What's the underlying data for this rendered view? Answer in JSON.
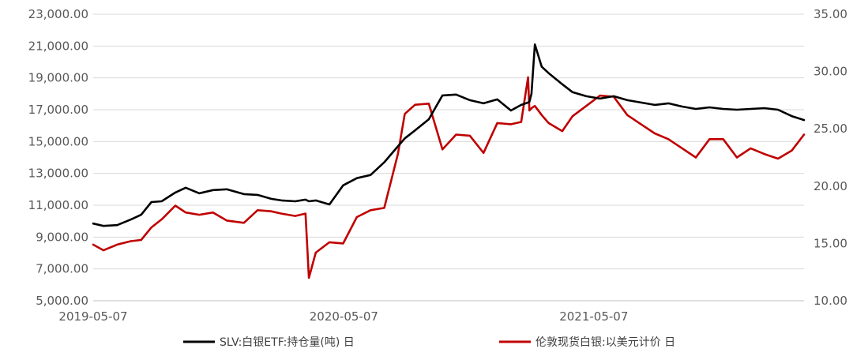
{
  "chart_data": {
    "type": "line",
    "title": "",
    "xlabel": "",
    "ylabel": "",
    "x_ticks": [
      "2019-05-07",
      "2020-05-07",
      "2021-05-07"
    ],
    "x_range": [
      "2019-05-07",
      "2022-03-10"
    ],
    "y_left": {
      "ticks": [
        "5,000.00",
        "7,000.00",
        "9,000.00",
        "11,000.00",
        "13,000.00",
        "15,000.00",
        "17,000.00",
        "19,000.00",
        "21,000.00",
        "23,000.00"
      ],
      "range": [
        5000,
        23000
      ]
    },
    "y_right": {
      "ticks": [
        "10.00",
        "15.00",
        "20.00",
        "25.00",
        "30.00",
        "35.00"
      ],
      "range": [
        10,
        35
      ]
    },
    "grid": true,
    "legend_position": "bottom",
    "series": [
      {
        "name": "SLV:白银ETF:持仓量(吨) 日",
        "axis": "left",
        "color": "#000000",
        "x": [
          "2019-05-07",
          "2019-05-22",
          "2019-06-11",
          "2019-07-01",
          "2019-07-16",
          "2019-07-31",
          "2019-08-15",
          "2019-09-04",
          "2019-09-19",
          "2019-10-09",
          "2019-10-29",
          "2019-11-18",
          "2019-12-13",
          "2020-01-02",
          "2020-01-22",
          "2020-02-06",
          "2020-02-26",
          "2020-03-12",
          "2020-03-17",
          "2020-03-27",
          "2020-04-16",
          "2020-05-06",
          "2020-05-26",
          "2020-06-15",
          "2020-07-05",
          "2020-07-25",
          "2020-08-04",
          "2020-08-19",
          "2020-09-08",
          "2020-09-28",
          "2020-10-18",
          "2020-11-07",
          "2020-11-27",
          "2020-12-17",
          "2021-01-06",
          "2021-01-21",
          "2021-01-31",
          "2021-02-02",
          "2021-02-05",
          "2021-02-10",
          "2021-02-20",
          "2021-03-02",
          "2021-03-22",
          "2021-04-06",
          "2021-04-26",
          "2021-05-16",
          "2021-06-05",
          "2021-06-25",
          "2021-07-15",
          "2021-08-04",
          "2021-08-24",
          "2021-09-13",
          "2021-10-03",
          "2021-10-23",
          "2021-11-12",
          "2021-12-02",
          "2021-12-22",
          "2022-01-11",
          "2022-01-31",
          "2022-02-20",
          "2022-03-10"
        ],
        "y": [
          9850,
          9700,
          9750,
          10100,
          10400,
          11200,
          11250,
          11800,
          12100,
          11750,
          11950,
          12000,
          11700,
          11650,
          11400,
          11300,
          11250,
          11350,
          11250,
          11300,
          11050,
          12250,
          12700,
          12900,
          13700,
          14700,
          15200,
          15700,
          16400,
          17900,
          17950,
          17600,
          17400,
          17650,
          16950,
          17300,
          17450,
          17500,
          18000,
          21100,
          19700,
          19300,
          18600,
          18100,
          17850,
          17700,
          17850,
          17600,
          17450,
          17300,
          17400,
          17200,
          17050,
          17150,
          17050,
          17000,
          17050,
          17100,
          17000,
          16600,
          16350
        ]
      },
      {
        "name": "伦敦现货白银:以美元计价 日",
        "axis": "right",
        "color": "#c00000",
        "x": [
          "2019-05-07",
          "2019-05-22",
          "2019-06-11",
          "2019-07-01",
          "2019-07-16",
          "2019-07-31",
          "2019-08-15",
          "2019-09-04",
          "2019-09-19",
          "2019-10-09",
          "2019-10-29",
          "2019-11-18",
          "2019-12-13",
          "2020-01-02",
          "2020-01-22",
          "2020-02-06",
          "2020-02-26",
          "2020-03-12",
          "2020-03-17",
          "2020-03-27",
          "2020-04-16",
          "2020-05-06",
          "2020-05-26",
          "2020-06-15",
          "2020-07-05",
          "2020-07-25",
          "2020-08-04",
          "2020-08-19",
          "2020-09-08",
          "2020-09-28",
          "2020-10-18",
          "2020-11-07",
          "2020-11-27",
          "2020-12-17",
          "2021-01-06",
          "2021-01-21",
          "2021-01-31",
          "2021-02-02",
          "2021-02-05",
          "2021-02-10",
          "2021-02-20",
          "2021-03-02",
          "2021-03-22",
          "2021-04-06",
          "2021-04-26",
          "2021-05-16",
          "2021-06-05",
          "2021-06-25",
          "2021-07-15",
          "2021-08-04",
          "2021-08-24",
          "2021-09-13",
          "2021-10-03",
          "2021-10-23",
          "2021-11-12",
          "2021-12-02",
          "2021-12-22",
          "2022-01-11",
          "2022-01-31",
          "2022-02-20",
          "2022-03-10"
        ],
        "y": [
          14.9,
          14.4,
          14.9,
          15.2,
          15.3,
          16.4,
          17.1,
          18.3,
          17.7,
          17.5,
          17.7,
          17.0,
          16.8,
          17.9,
          17.8,
          17.6,
          17.4,
          17.6,
          12.0,
          14.2,
          15.1,
          15.0,
          17.3,
          17.9,
          18.1,
          22.8,
          26.3,
          27.1,
          27.2,
          23.2,
          24.5,
          24.4,
          22.9,
          25.5,
          25.4,
          25.6,
          29.5,
          26.6,
          26.8,
          27.0,
          26.2,
          25.5,
          24.8,
          26.1,
          27.0,
          27.9,
          27.8,
          26.2,
          25.4,
          24.6,
          24.1,
          23.3,
          22.5,
          24.1,
          24.1,
          22.5,
          23.3,
          22.8,
          22.4,
          23.1,
          24.5
        ]
      }
    ]
  }
}
